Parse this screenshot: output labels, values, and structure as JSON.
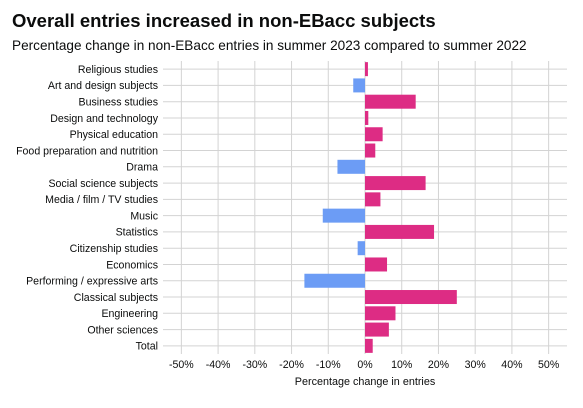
{
  "chart_data": {
    "type": "bar",
    "orientation": "horizontal",
    "title": "Overall entries increased in non-EBacc subjects",
    "subtitle": "Percentage change in non-EBacc entries in summer 2023 compared to summer 2022",
    "xlabel": "Percentage change in entries",
    "ylabel": "",
    "xlim": [
      -55,
      55
    ],
    "xticks": [
      -50,
      -40,
      -30,
      -20,
      -10,
      0,
      10,
      20,
      30,
      40,
      50
    ],
    "xtick_labels": [
      "-50%",
      "-40%",
      "-30%",
      "-20%",
      "-10%",
      "0%",
      "10%",
      "20%",
      "30%",
      "40%",
      "50%"
    ],
    "grid": true,
    "legend": "none",
    "colors": {
      "increase": "#dd2c84",
      "decrease": "#6c9cf5"
    },
    "categories": [
      "Religious studies",
      "Art and design subjects",
      "Business studies",
      "Design and technology",
      "Physical education",
      "Food preparation and nutrition",
      "Drama",
      "Social science subjects",
      "Media / film / TV studies",
      "Music",
      "Statistics",
      "Citizenship studies",
      "Economics",
      "Performing / expressive arts",
      "Classical subjects",
      "Engineering",
      "Other sciences",
      "Total"
    ],
    "values": [
      0.8,
      -3.2,
      13.8,
      0.9,
      4.8,
      2.8,
      -7.5,
      16.5,
      4.2,
      -11.5,
      18.8,
      -2.0,
      6.0,
      -16.5,
      25.0,
      8.3,
      6.5,
      2.1
    ]
  }
}
